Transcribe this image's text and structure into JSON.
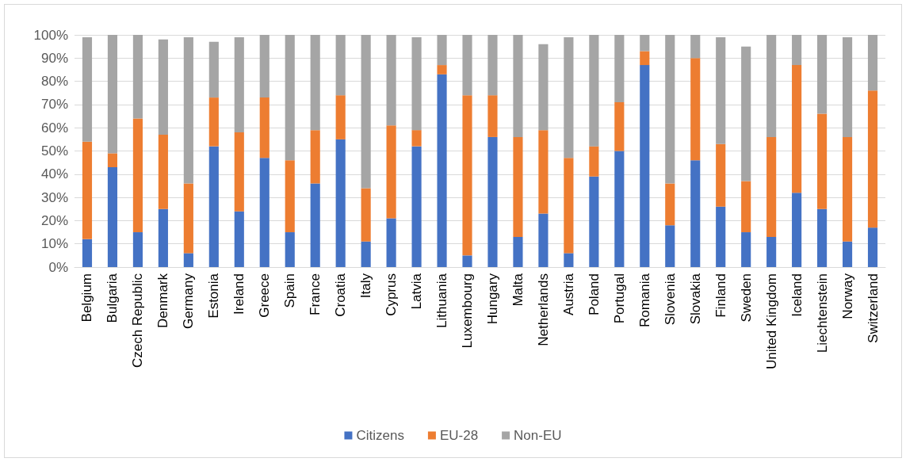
{
  "chart_data": {
    "type": "bar",
    "stacked": true,
    "categories": [
      "Belgium",
      "Bulgaria",
      "Czech Republic",
      "Denmark",
      "Germany",
      "Estonia",
      "Ireland",
      "Greece",
      "Spain",
      "France",
      "Croatia",
      "Italy",
      "Cyprus",
      "Latvia",
      "Lithuania",
      "Luxembourg",
      "Hungary",
      "Malta",
      "Netherlands",
      "Austria",
      "Poland",
      "Portugal",
      "Romania",
      "Slovenia",
      "Slovakia",
      "Finland",
      "Sweden",
      "United Kingdom",
      "Iceland",
      "Liechtenstein",
      "Norway",
      "Switzerland"
    ],
    "series": [
      {
        "name": "Citizens",
        "color": "#4472c4",
        "values": [
          12,
          43,
          15,
          25,
          6,
          52,
          24,
          47,
          15,
          36,
          55,
          11,
          21,
          52,
          83,
          5,
          56,
          13,
          23,
          6,
          39,
          50,
          87,
          18,
          46,
          26,
          15,
          13,
          32,
          25,
          11,
          17
        ]
      },
      {
        "name": "EU-28",
        "color": "#ed7d31",
        "values": [
          42,
          6,
          49,
          32,
          30,
          21,
          34,
          26,
          31,
          23,
          19,
          23,
          40,
          7,
          4,
          69,
          18,
          43,
          36,
          41,
          13,
          21,
          6,
          18,
          44,
          27,
          22,
          43,
          55,
          41,
          45,
          59
        ]
      },
      {
        "name": "Non-EU",
        "color": "#a5a5a5",
        "values": [
          45,
          51,
          36,
          41,
          63,
          24,
          41,
          27,
          54,
          41,
          26,
          66,
          39,
          40,
          13,
          26,
          26,
          44,
          37,
          52,
          48,
          29,
          7,
          64,
          10,
          46,
          58,
          44,
          13,
          34,
          43,
          24
        ]
      }
    ],
    "ylim": [
      0,
      100
    ],
    "yticks": [
      {
        "value": 0,
        "label": "0%"
      },
      {
        "value": 10,
        "label": "10%"
      },
      {
        "value": 20,
        "label": "20%"
      },
      {
        "value": 30,
        "label": "30%"
      },
      {
        "value": 40,
        "label": "40%"
      },
      {
        "value": 50,
        "label": "50%"
      },
      {
        "value": 60,
        "label": "60%"
      },
      {
        "value": 70,
        "label": "70%"
      },
      {
        "value": 80,
        "label": "80%"
      },
      {
        "value": 90,
        "label": "90%"
      },
      {
        "value": 100,
        "label": "100%"
      }
    ],
    "grid": "y",
    "legend": "bottom"
  }
}
